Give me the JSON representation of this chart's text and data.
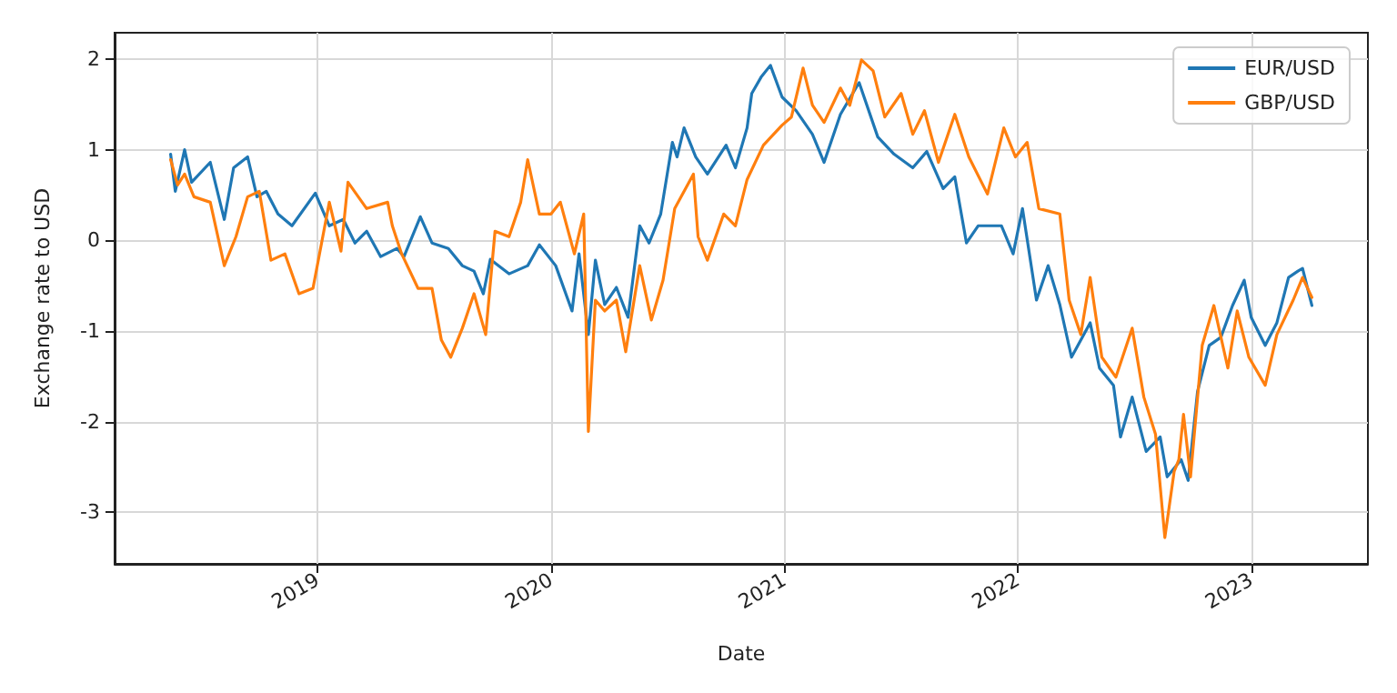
{
  "chart_data": {
    "type": "line",
    "xlabel": "Date",
    "ylabel": "Exchange rate to USD",
    "xlim": [
      2018.13,
      2023.5
    ],
    "xticks": [
      2019,
      2020,
      2021,
      2022,
      2023
    ],
    "ylim": [
      -3.57,
      2.29
    ],
    "yticks": [
      -3,
      -2,
      -1,
      0,
      1,
      2
    ],
    "grid": true,
    "legend": "top right",
    "marker": "none",
    "line_style": "solid",
    "series": [
      {
        "name": "EUR/USD",
        "color": "#1f77b4",
        "x": [
          2018.37,
          2018.39,
          2018.43,
          2018.46,
          2018.54,
          2018.6,
          2018.64,
          2018.7,
          2018.74,
          2018.78,
          2018.83,
          2018.89,
          2018.99,
          2019.05,
          2019.11,
          2019.16,
          2019.21,
          2019.27,
          2019.34,
          2019.37,
          2019.44,
          2019.49,
          2019.56,
          2019.62,
          2019.67,
          2019.71,
          2019.74,
          2019.82,
          2019.9,
          2019.95,
          2020.02,
          2020.09,
          2020.12,
          2020.16,
          2020.19,
          2020.23,
          2020.28,
          2020.33,
          2020.38,
          2020.42,
          2020.47,
          2020.52,
          2020.54,
          2020.57,
          2020.62,
          2020.67,
          2020.75,
          2020.79,
          2020.84,
          2020.86,
          2020.9,
          2020.94,
          2020.99,
          2021.05,
          2021.12,
          2021.17,
          2021.24,
          2021.32,
          2021.4,
          2021.47,
          2021.55,
          2021.61,
          2021.68,
          2021.73,
          2021.78,
          2021.83,
          2021.93,
          2021.98,
          2022.02,
          2022.08,
          2022.13,
          2022.18,
          2022.23,
          2022.31,
          2022.35,
          2022.41,
          2022.44,
          2022.49,
          2022.55,
          2022.61,
          2022.64,
          2022.7,
          2022.73,
          2022.77,
          2022.82,
          2022.87,
          2022.92,
          2022.97,
          2023.0,
          2023.06,
          2023.11,
          2023.16,
          2023.2,
          2023.22,
          2023.26
        ],
        "values": [
          0.95,
          0.54,
          1.0,
          0.64,
          0.86,
          0.23,
          0.8,
          0.92,
          0.48,
          0.54,
          0.29,
          0.16,
          0.52,
          0.16,
          0.23,
          -0.03,
          0.1,
          -0.18,
          -0.09,
          -0.18,
          0.26,
          -0.03,
          -0.09,
          -0.28,
          -0.34,
          -0.59,
          -0.21,
          -0.37,
          -0.28,
          -0.05,
          -0.28,
          -0.78,
          -0.15,
          -1.04,
          -0.22,
          -0.71,
          -0.52,
          -0.85,
          0.16,
          -0.03,
          0.29,
          1.08,
          0.92,
          1.24,
          0.92,
          0.73,
          1.05,
          0.8,
          1.24,
          1.62,
          1.8,
          1.93,
          1.58,
          1.43,
          1.17,
          0.86,
          1.39,
          1.74,
          1.14,
          0.95,
          0.8,
          0.98,
          0.57,
          0.7,
          -0.03,
          0.16,
          0.16,
          -0.15,
          0.35,
          -0.66,
          -0.28,
          -0.71,
          -1.29,
          -0.91,
          -1.41,
          -1.6,
          -2.17,
          -1.73,
          -2.33,
          -2.17,
          -2.61,
          -2.42,
          -2.65,
          -1.67,
          -1.16,
          -1.07,
          -0.72,
          -0.44,
          -0.85,
          -1.16,
          -0.91,
          -0.41,
          -0.34,
          -0.31,
          -0.72
        ]
      },
      {
        "name": "GBP/USD",
        "color": "#ff7f0e",
        "x": [
          2018.37,
          2018.4,
          2018.43,
          2018.47,
          2018.54,
          2018.6,
          2018.65,
          2018.7,
          2018.75,
          2018.8,
          2018.86,
          2018.92,
          2018.98,
          2019.05,
          2019.1,
          2019.13,
          2019.21,
          2019.3,
          2019.32,
          2019.36,
          2019.43,
          2019.49,
          2019.53,
          2019.57,
          2019.62,
          2019.67,
          2019.72,
          2019.76,
          2019.82,
          2019.87,
          2019.9,
          2019.95,
          2020.0,
          2020.04,
          2020.1,
          2020.14,
          2020.16,
          2020.19,
          2020.23,
          2020.28,
          2020.32,
          2020.38,
          2020.43,
          2020.48,
          2020.53,
          2020.61,
          2020.63,
          2020.67,
          2020.74,
          2020.79,
          2020.84,
          2020.91,
          2020.99,
          2021.03,
          2021.08,
          2021.12,
          2021.17,
          2021.24,
          2021.28,
          2021.33,
          2021.38,
          2021.43,
          2021.5,
          2021.55,
          2021.6,
          2021.66,
          2021.73,
          2021.79,
          2021.87,
          2021.94,
          2021.99,
          2022.04,
          2022.09,
          2022.18,
          2022.22,
          2022.27,
          2022.31,
          2022.36,
          2022.42,
          2022.49,
          2022.54,
          2022.59,
          2022.63,
          2022.67,
          2022.69,
          2022.71,
          2022.74,
          2022.79,
          2022.84,
          2022.9,
          2022.94,
          2022.99,
          2023.06,
          2023.11,
          2023.18,
          2023.22,
          2023.26
        ],
        "values": [
          0.89,
          0.61,
          0.73,
          0.48,
          0.42,
          -0.28,
          0.04,
          0.48,
          0.54,
          -0.22,
          -0.15,
          -0.59,
          -0.53,
          0.42,
          -0.12,
          0.64,
          0.35,
          0.42,
          0.16,
          -0.15,
          -0.53,
          -0.53,
          -1.1,
          -1.29,
          -0.97,
          -0.59,
          -1.04,
          0.1,
          0.04,
          0.42,
          0.89,
          0.29,
          0.29,
          0.42,
          -0.15,
          0.29,
          -2.11,
          -0.66,
          -0.78,
          -0.66,
          -1.23,
          -0.28,
          -0.88,
          -0.44,
          0.35,
          0.73,
          0.04,
          -0.22,
          0.29,
          0.16,
          0.67,
          1.05,
          1.27,
          1.36,
          1.9,
          1.49,
          1.3,
          1.68,
          1.49,
          1.99,
          1.87,
          1.36,
          1.62,
          1.17,
          1.43,
          0.86,
          1.39,
          0.92,
          0.51,
          1.24,
          0.92,
          1.08,
          0.35,
          0.29,
          -0.66,
          -1.04,
          -0.41,
          -1.29,
          -1.51,
          -0.97,
          -1.73,
          -2.14,
          -3.28,
          -2.55,
          -2.42,
          -1.92,
          -2.61,
          -1.16,
          -0.72,
          -1.41,
          -0.78,
          -1.29,
          -1.6,
          -1.04,
          -0.66,
          -0.41,
          -0.63
        ]
      }
    ]
  }
}
